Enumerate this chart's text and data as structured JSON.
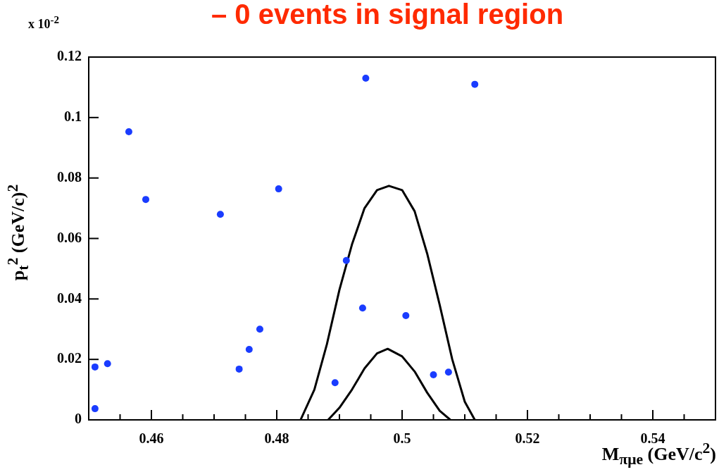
{
  "chart_data": {
    "type": "scatter",
    "title": "–  0 events in signal region",
    "xlabel": "M$_{πμe}$ (GeV/c$^{2}$)",
    "ylabel": "p$_{t}$$^{2}$ (GeV/c)$^{2}$",
    "annotations": [
      "x 10$^{-2}$"
    ],
    "xlim": [
      0.45,
      0.55
    ],
    "ylim": [
      0,
      0.12
    ],
    "xticks": [
      {
        "value": 0.455,
        "label": null
      },
      0.46,
      {
        "value": 0.465,
        "label": null
      },
      {
        "value": 0.47,
        "label": null
      },
      {
        "value": 0.475,
        "label": null
      },
      0.48,
      {
        "value": 0.485,
        "label": null
      },
      {
        "value": 0.49,
        "label": null
      },
      {
        "value": 0.495,
        "label": null
      },
      0.5,
      {
        "value": 0.505,
        "label": null
      },
      {
        "value": 0.51,
        "label": null
      },
      {
        "value": 0.515,
        "label": null
      },
      0.52,
      {
        "value": 0.525,
        "label": null
      },
      {
        "value": 0.53,
        "label": null
      },
      {
        "value": 0.535,
        "label": null
      },
      0.54,
      {
        "value": 0.545,
        "label": null
      }
    ],
    "yticks": [
      0,
      0.02,
      0.04,
      0.06,
      0.08,
      0.1,
      0.12
    ],
    "grid": false,
    "legend": false,
    "marker": "circle",
    "series": [
      {
        "type": "scatter",
        "color": "#1a3cff",
        "x": [
          0.451,
          0.451,
          0.453,
          0.4564,
          0.4591,
          0.471,
          0.474,
          0.4756,
          0.4773,
          0.4803,
          0.4893,
          0.4911,
          0.4937,
          0.4942,
          0.5006,
          0.505,
          0.5074,
          0.5116
        ],
        "values": [
          0.0175,
          0.0037,
          0.0186,
          0.0953,
          0.0729,
          0.068,
          0.0168,
          0.0233,
          0.03,
          0.0764,
          0.0123,
          0.0527,
          0.037,
          0.113,
          0.0345,
          0.0149,
          0.0158,
          0.111
        ]
      },
      {
        "type": "line",
        "color": "#000000",
        "marker": "none",
        "x": [
          0.4838,
          0.486,
          0.488,
          0.49,
          0.492,
          0.494,
          0.496,
          0.4979,
          0.5,
          0.502,
          0.504,
          0.506,
          0.508,
          0.51,
          0.5116
        ],
        "values": [
          0,
          0.01,
          0.025,
          0.043,
          0.058,
          0.07,
          0.076,
          0.0774,
          0.076,
          0.069,
          0.055,
          0.038,
          0.02,
          0.006,
          0
        ]
      },
      {
        "type": "line",
        "color": "#000000",
        "marker": "none",
        "x": [
          0.4882,
          0.49,
          0.492,
          0.494,
          0.496,
          0.4977,
          0.5,
          0.502,
          0.504,
          0.506,
          0.5077
        ],
        "values": [
          0,
          0.004,
          0.01,
          0.017,
          0.022,
          0.0235,
          0.021,
          0.016,
          0.009,
          0.003,
          0
        ]
      }
    ]
  }
}
